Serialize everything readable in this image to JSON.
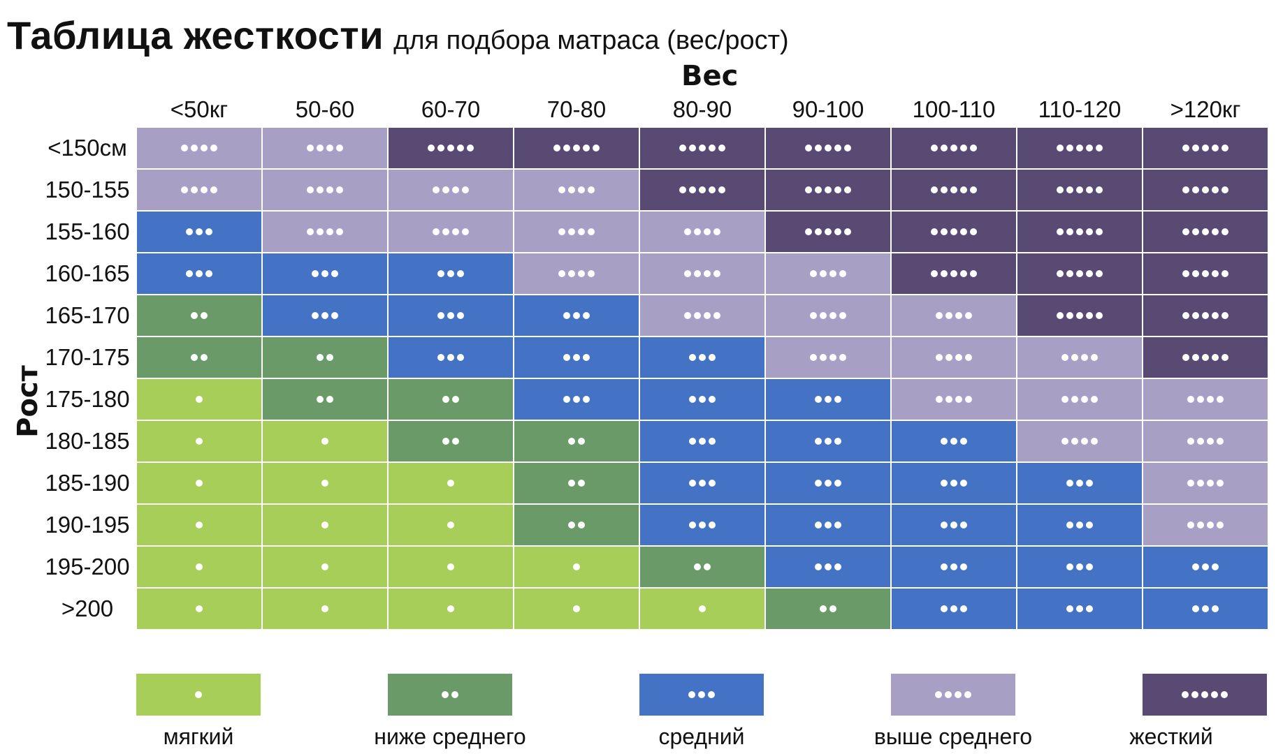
{
  "title": {
    "main": "Таблица жесткости",
    "sub": "для подбора матраса (вес/рост)"
  },
  "chart_data": {
    "type": "heatmap",
    "xlabel": "Вес",
    "ylabel": "Рост",
    "x_categories": [
      "<50кг",
      "50-60",
      "60-70",
      "70-80",
      "80-90",
      "90-100",
      "100-110",
      "110-120",
      ">120кг"
    ],
    "y_categories": [
      "<150см",
      "150-155",
      "155-160",
      "160-165",
      "165-170",
      "170-175",
      "175-180",
      "180-185",
      "185-190",
      "190-195",
      "195-200",
      ">200"
    ],
    "values": [
      [
        4,
        4,
        5,
        5,
        5,
        5,
        5,
        5,
        5
      ],
      [
        4,
        4,
        4,
        4,
        5,
        5,
        5,
        5,
        5
      ],
      [
        3,
        4,
        4,
        4,
        4,
        5,
        5,
        5,
        5
      ],
      [
        3,
        3,
        3,
        4,
        4,
        4,
        5,
        5,
        5
      ],
      [
        2,
        3,
        3,
        3,
        4,
        4,
        4,
        5,
        5
      ],
      [
        2,
        2,
        3,
        3,
        3,
        4,
        4,
        4,
        5
      ],
      [
        1,
        2,
        2,
        3,
        3,
        3,
        4,
        4,
        4
      ],
      [
        1,
        1,
        2,
        2,
        3,
        3,
        3,
        4,
        4
      ],
      [
        1,
        1,
        1,
        2,
        3,
        3,
        3,
        3,
        4
      ],
      [
        1,
        1,
        1,
        2,
        3,
        3,
        3,
        3,
        4
      ],
      [
        1,
        1,
        1,
        1,
        2,
        3,
        3,
        3,
        3
      ],
      [
        1,
        1,
        1,
        1,
        1,
        2,
        3,
        3,
        3
      ]
    ],
    "legend": [
      {
        "level": 1,
        "label": "мягкий",
        "color": "#a6ce58"
      },
      {
        "level": 2,
        "label": "ниже среднего",
        "color": "#6a9a68"
      },
      {
        "level": 3,
        "label": "средний",
        "color": "#4472c4"
      },
      {
        "level": 4,
        "label": "выше среднего",
        "color": "#a89fc5"
      },
      {
        "level": 5,
        "label": "жесткий",
        "color": "#594a73"
      }
    ]
  }
}
